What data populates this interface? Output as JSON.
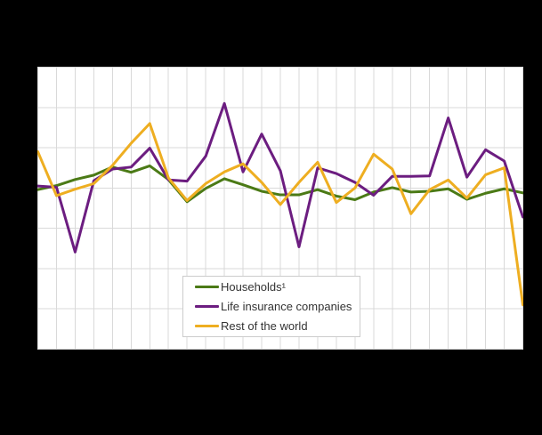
{
  "page": {
    "background_color": "#000000",
    "title": "",
    "visible_axis_labels": false
  },
  "chart": {
    "plot_background": "#ffffff",
    "grid_color": "#d9d9d9",
    "legend_border_color": "#cccccc",
    "legend_text_color": "#333333",
    "line_width": 3
  },
  "chart_data": {
    "type": "line",
    "title": "",
    "xlabel": "",
    "ylabel": "",
    "x_tick_labels_visible": false,
    "y_tick_labels_visible": false,
    "grid": true,
    "legend_position": "inside-bottom-center",
    "x": [
      0,
      1,
      2,
      3,
      4,
      5,
      6,
      7,
      8,
      9,
      10,
      11,
      12,
      13,
      14,
      15,
      16,
      17,
      18,
      19,
      20,
      21,
      22,
      23,
      24,
      25,
      26
    ],
    "xlim": [
      0,
      26
    ],
    "ylim": [
      -4,
      3
    ],
    "y_gridline_step": 1,
    "series": [
      {
        "name": "Households¹",
        "color": "#4b7a16",
        "values": [
          -0.04,
          0.06,
          0.21,
          0.32,
          0.52,
          0.39,
          0.55,
          0.21,
          -0.34,
          -0.01,
          0.23,
          0.08,
          -0.08,
          -0.17,
          -0.17,
          -0.04,
          -0.2,
          -0.29,
          -0.1,
          0.01,
          -0.1,
          -0.08,
          -0.02,
          -0.28,
          -0.13,
          -0.02,
          -0.12
        ]
      },
      {
        "name": "Life insurance companies",
        "color": "#6c1d80",
        "values": [
          0.05,
          0.02,
          -1.59,
          0.18,
          0.47,
          0.52,
          0.99,
          0.2,
          0.17,
          0.79,
          2.1,
          0.4,
          1.34,
          0.43,
          -1.46,
          0.5,
          0.36,
          0.14,
          -0.18,
          0.29,
          0.29,
          0.3,
          1.74,
          0.27,
          0.95,
          0.67,
          -0.72
        ]
      },
      {
        "name": "Rest of the world",
        "color": "#eeae21",
        "values": [
          0.9,
          -0.19,
          -0.03,
          0.11,
          0.56,
          1.11,
          1.6,
          0.25,
          -0.31,
          0.11,
          0.4,
          0.6,
          0.14,
          -0.41,
          0.14,
          0.64,
          -0.36,
          0.0,
          0.84,
          0.47,
          -0.64,
          -0.04,
          0.2,
          -0.25,
          0.33,
          0.5,
          -2.9
        ]
      }
    ]
  }
}
